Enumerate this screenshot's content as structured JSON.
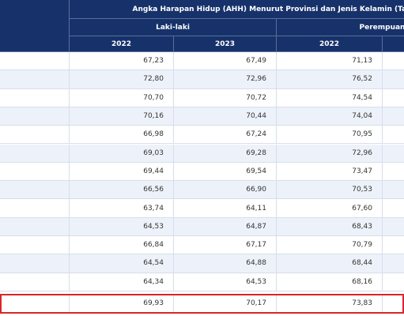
{
  "header": {
    "title": "Angka Harapan Hidup (AHH) Menurut Provinsi dan Jenis Kelamin (Tahun)",
    "groups": [
      "Laki-laki",
      "Perempuan"
    ],
    "years": [
      "2022",
      "2023",
      "2022"
    ]
  },
  "table": {
    "rows": [
      [
        "67,23",
        "67,49",
        "71,13"
      ],
      [
        "72,80",
        "72,96",
        "76,52"
      ],
      [
        "70,70",
        "70,72",
        "74,54"
      ],
      [
        "70,16",
        "70,44",
        "74,04"
      ],
      [
        "66,98",
        "67,24",
        "70,95"
      ],
      [
        "69,03",
        "69,28",
        "72,96"
      ],
      [
        "69,44",
        "69,54",
        "73,47"
      ],
      [
        "66,56",
        "66,90",
        "70,53"
      ],
      [
        "63,74",
        "64,11",
        "67,60"
      ],
      [
        "64,53",
        "64,87",
        "68,43"
      ],
      [
        "66,84",
        "67,17",
        "70,79"
      ],
      [
        "64,54",
        "64,88",
        "68,44"
      ],
      [
        "64,34",
        "64,53",
        "68,16"
      ]
    ],
    "total": [
      "69,93",
      "70,17",
      "73,83"
    ]
  }
}
